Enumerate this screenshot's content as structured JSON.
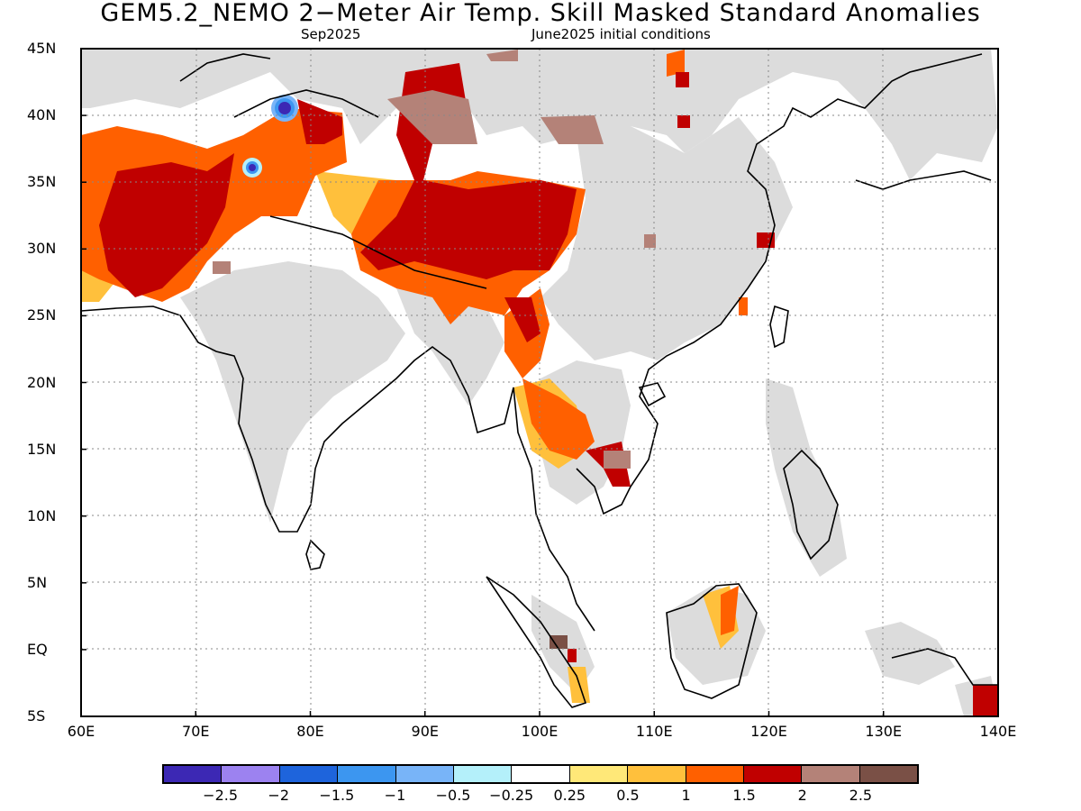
{
  "title": "GEM5.2_NEMO 2−Meter Air Temp. Skill Masked Standard Anomalies",
  "subtitle_month": "Sep2025",
  "subtitle_init": "June2025 initial conditions",
  "map": {
    "lon_range": [
      60,
      140
    ],
    "lat_range": [
      -5,
      45
    ],
    "lat_ticks": [
      "45N",
      "40N",
      "35N",
      "30N",
      "25N",
      "20N",
      "15N",
      "10N",
      "5N",
      "EQ",
      "5S"
    ],
    "lon_ticks": [
      "60E",
      "70E",
      "80E",
      "90E",
      "100E",
      "110E",
      "120E",
      "130E",
      "140E"
    ],
    "grid": "dotted",
    "land_no_skill_color": "#dcdcdc"
  },
  "colorbar": {
    "colors": [
      "#3c28b4",
      "#9c82f0",
      "#1e64dc",
      "#3c96f0",
      "#78b4f8",
      "#b4f0fa",
      "#ffffff",
      "#ffe878",
      "#ffc03c",
      "#ff6000",
      "#c00000",
      "#b48278",
      "#7a5046"
    ],
    "labels": [
      "−2.5",
      "−2",
      "−1.5",
      "−1",
      "−0.5",
      "−0.25",
      "0.25",
      "0.5",
      "1",
      "1.5",
      "2",
      "2.5"
    ]
  }
}
